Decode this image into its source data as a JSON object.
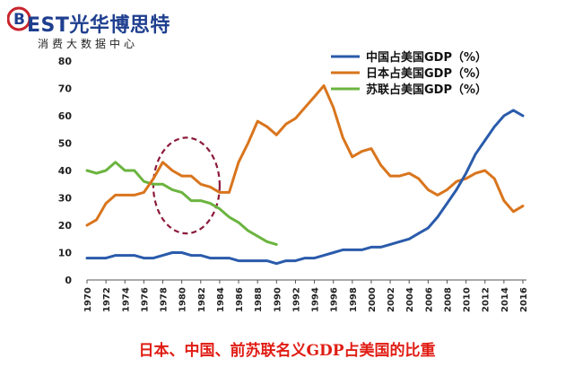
{
  "brand": {
    "badge_letter": "B",
    "name": "EST光华博思特",
    "subtitle": "消费大数据中心",
    "colors": {
      "brand_blue": "#1f3f8f",
      "brand_red": "#c8232c"
    }
  },
  "caption": "日本、中国、前苏联名义GDP占美国的比重",
  "chart_data": {
    "type": "line",
    "title": "",
    "xlabel": "",
    "ylabel": "",
    "ylim": [
      0,
      80
    ],
    "xlim": [
      1970,
      2016
    ],
    "yticks": [
      "0",
      "10",
      "20",
      "30",
      "40",
      "50",
      "60",
      "70",
      "80"
    ],
    "xticks": [
      "1970",
      "1972",
      "1974",
      "1976",
      "1978",
      "1980",
      "1982",
      "1984",
      "1986",
      "1988",
      "1990",
      "1992",
      "1994",
      "1996",
      "1998",
      "2000",
      "2002",
      "2004",
      "2006",
      "2008",
      "2010",
      "2012",
      "2014",
      "2016"
    ],
    "grid": false,
    "legend_position": "top-right",
    "annotation": "dashed ellipse around 1978-1984",
    "annotation_range_x": [
      1977,
      1984
    ],
    "annotation_range_y": [
      17,
      52
    ],
    "series": [
      {
        "name": "中国占美国GDP（%）",
        "color": "#2a5bab",
        "x": [
          1970,
          1971,
          1972,
          1973,
          1974,
          1975,
          1976,
          1977,
          1978,
          1979,
          1980,
          1981,
          1982,
          1983,
          1984,
          1985,
          1986,
          1987,
          1988,
          1989,
          1990,
          1991,
          1992,
          1993,
          1994,
          1995,
          1996,
          1997,
          1998,
          1999,
          2000,
          2001,
          2002,
          2003,
          2004,
          2005,
          2006,
          2007,
          2008,
          2009,
          2010,
          2011,
          2012,
          2013,
          2014,
          2015,
          2016
        ],
        "y": [
          8,
          8,
          8,
          9,
          9,
          9,
          8,
          8,
          9,
          10,
          10,
          9,
          9,
          8,
          8,
          8,
          7,
          7,
          7,
          7,
          6,
          7,
          7,
          8,
          8,
          9,
          10,
          11,
          11,
          11,
          12,
          12,
          13,
          14,
          15,
          17,
          19,
          23,
          28,
          33,
          39,
          46,
          51,
          56,
          60,
          62,
          60
        ]
      },
      {
        "name": "日本占美国GDP（%）",
        "color": "#d9751d",
        "x": [
          1970,
          1971,
          1972,
          1973,
          1974,
          1975,
          1976,
          1977,
          1978,
          1979,
          1980,
          1981,
          1982,
          1983,
          1984,
          1985,
          1986,
          1987,
          1988,
          1989,
          1990,
          1991,
          1992,
          1993,
          1994,
          1995,
          1996,
          1997,
          1998,
          1999,
          2000,
          2001,
          2002,
          2003,
          2004,
          2005,
          2006,
          2007,
          2008,
          2009,
          2010,
          2011,
          2012,
          2013,
          2014,
          2015,
          2016
        ],
        "y": [
          20,
          22,
          28,
          31,
          31,
          31,
          32,
          37,
          43,
          40,
          38,
          38,
          35,
          34,
          32,
          32,
          43,
          50,
          58,
          56,
          53,
          57,
          59,
          63,
          67,
          71,
          63,
          52,
          45,
          47,
          48,
          42,
          38,
          38,
          39,
          37,
          33,
          31,
          33,
          36,
          37,
          39,
          40,
          37,
          29,
          25,
          27
        ]
      },
      {
        "name": "苏联占美国GDP（%）",
        "color": "#6bb43f",
        "x": [
          1970,
          1971,
          1972,
          1973,
          1974,
          1975,
          1976,
          1977,
          1978,
          1979,
          1980,
          1981,
          1982,
          1983,
          1984,
          1985,
          1986,
          1987,
          1988,
          1989,
          1990
        ],
        "y": [
          40,
          39,
          40,
          43,
          40,
          40,
          36,
          35,
          35,
          33,
          32,
          29,
          29,
          28,
          26,
          23,
          21,
          18,
          16,
          14,
          13
        ]
      }
    ]
  }
}
